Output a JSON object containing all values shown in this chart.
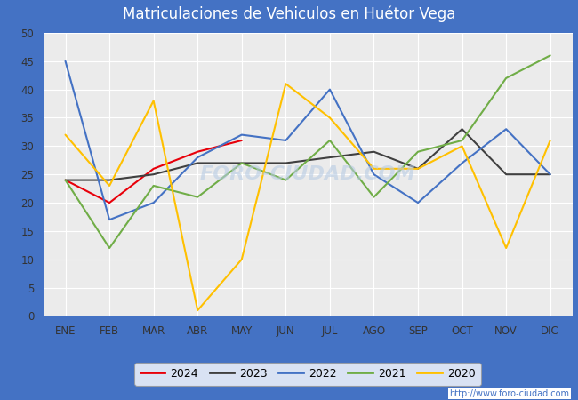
{
  "title": "Matriculaciones de Vehiculos en Huétor Vega",
  "title_color": "white",
  "title_bg_color": "#4472C4",
  "months": [
    "ENE",
    "FEB",
    "MAR",
    "ABR",
    "MAY",
    "JUN",
    "JUL",
    "AGO",
    "SEP",
    "OCT",
    "NOV",
    "DIC"
  ],
  "series": {
    "2024": {
      "color": "#E8000A",
      "data": [
        24,
        20,
        26,
        29,
        31,
        null,
        null,
        null,
        null,
        null,
        null,
        null
      ]
    },
    "2023": {
      "color": "#404040",
      "data": [
        24,
        24,
        25,
        27,
        27,
        27,
        28,
        29,
        26,
        33,
        25,
        25
      ]
    },
    "2022": {
      "color": "#4472C4",
      "data": [
        45,
        17,
        20,
        28,
        32,
        31,
        40,
        25,
        20,
        27,
        33,
        25
      ]
    },
    "2021": {
      "color": "#70AD47",
      "data": [
        24,
        12,
        23,
        21,
        27,
        24,
        31,
        21,
        29,
        31,
        42,
        46
      ]
    },
    "2020": {
      "color": "#FFC000",
      "data": [
        32,
        23,
        38,
        1,
        10,
        41,
        35,
        26,
        26,
        30,
        12,
        31
      ]
    }
  },
  "ylim": [
    0,
    50
  ],
  "yticks": [
    0,
    5,
    10,
    15,
    20,
    25,
    30,
    35,
    40,
    45,
    50
  ],
  "plot_bg_color": "#EBEBEB",
  "grid_color": "white",
  "watermark": "FORO-CIUDAD.COM",
  "url": "http://www.foro-ciudad.com",
  "legend_order": [
    "2024",
    "2023",
    "2022",
    "2021",
    "2020"
  ],
  "fig_bg_color": "#4472C4"
}
